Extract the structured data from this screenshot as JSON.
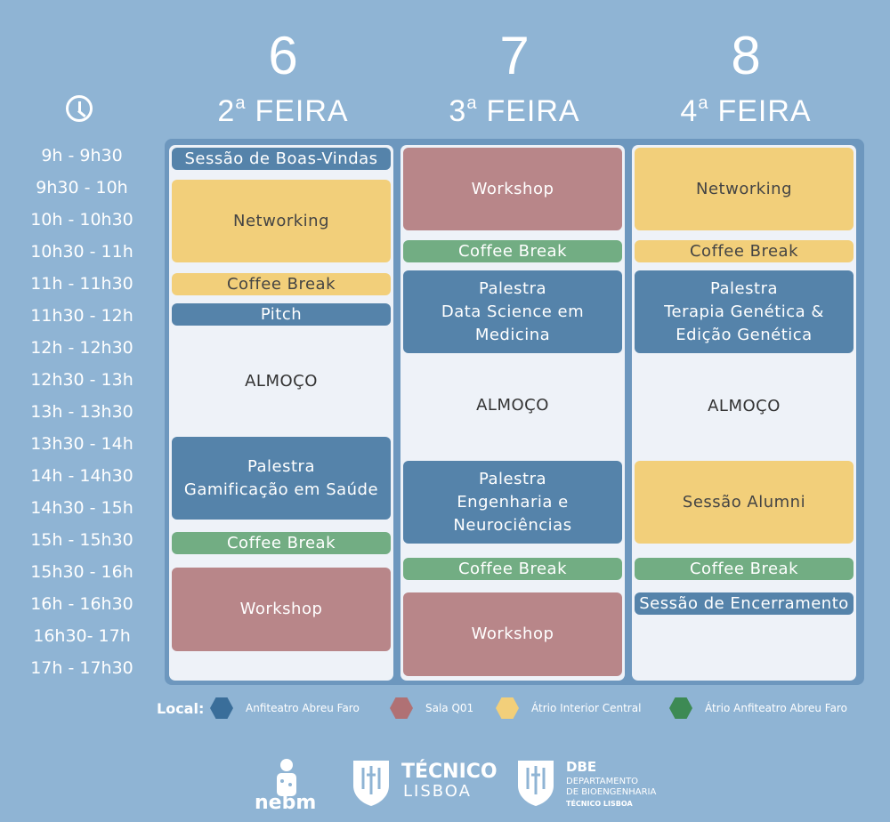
{
  "days": [
    {
      "num": "6",
      "ord": "2",
      "sup": "a",
      "label": "FEIRA"
    },
    {
      "num": "7",
      "ord": "3",
      "sup": "a",
      "label": "FEIRA"
    },
    {
      "num": "8",
      "ord": "4",
      "sup": "a",
      "label": "FEIRA"
    }
  ],
  "times": [
    "9h  -  9h30",
    "9h30  -  10h",
    "10h  -  10h30",
    "10h30  -  11h",
    "11h  -  11h30",
    "11h30  -  12h",
    "12h  -  12h30",
    "12h30  -  13h",
    "13h  -  13h30",
    "13h30  -  14h",
    "14h  -  14h30",
    "14h30  -  15h",
    "15h  -  15h30",
    "15h30  -  16h",
    "16h  -  16h30",
    "16h30-  17h",
    "17h  -  17h30"
  ],
  "monday": {
    "b1": "Sessão de Boas-Vindas",
    "b2": "Networking",
    "b3": "Coffee Break",
    "b4": "Pitch",
    "b5": "ALMOÇO",
    "b6": "Palestra\nGamificação em Saúde",
    "b7": "Coffee Break",
    "b8": "Workshop"
  },
  "tuesday": {
    "b1": "Workshop",
    "b2": "Coffee Break",
    "b3": "Palestra\nData Science em\nMedicina",
    "b4": "ALMOÇO",
    "b5": "Palestra\nEngenharia e\nNeurociências",
    "b6": "Coffee Break",
    "b7": "Workshop"
  },
  "wednesday": {
    "b1": "Networking",
    "b2": "Coffee Break",
    "b3": "Palestra\nTerapia Genética &\nEdição Genética",
    "b4": "ALMOÇO",
    "b5": "Sessão Alumni",
    "b6": "Coffee Break",
    "b7": "Sessão de Encerramento"
  },
  "legend": {
    "title": "Local:",
    "items": [
      {
        "label": "Anfiteatro Abreu Faro",
        "color": "#3a6e9a"
      },
      {
        "label": "Sala Q01",
        "color": "#b07174"
      },
      {
        "label": "Átrio Interior Central",
        "color": "#f2cf7a"
      },
      {
        "label": "Átrio Anfiteatro Abreu Faro",
        "color": "#3d8a54"
      }
    ]
  },
  "logos": {
    "nebm": "nebm",
    "tecnico_title": "TÉCNICO",
    "tecnico_sub": "LISBOA",
    "dbe_title": "DBE",
    "dbe_line1": "DEPARTAMENTO",
    "dbe_line2": "DE BIOENGENHARIA",
    "dbe_line3": "TÉCNICO LISBOA"
  },
  "colors": {
    "blue": "#5583aa",
    "red": "#b88689",
    "yellow": "#f2cf7a",
    "green": "#72ad83",
    "background": "#8fb4d4"
  }
}
